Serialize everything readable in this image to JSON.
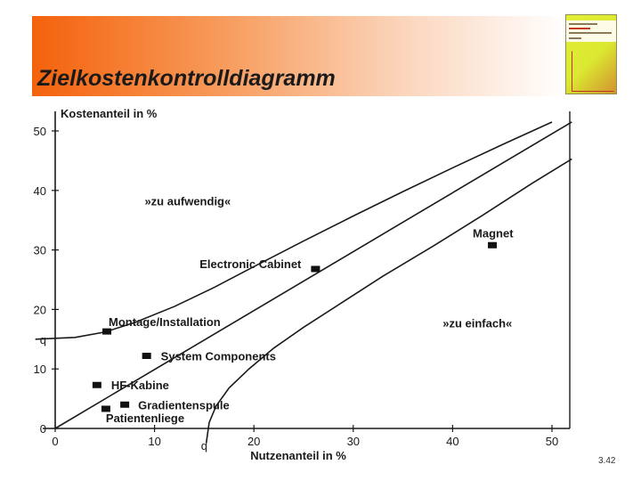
{
  "slide": {
    "title": "Zielkostenkontrolldiagramm",
    "page_number": "3.42"
  },
  "colors": {
    "header_orange": "#f4620c",
    "ink": "#1a1a1a",
    "book_yellow": "#e3ef37"
  },
  "icons": [
    "book-cover-thumbnail"
  ],
  "chart_data": {
    "type": "scatter",
    "title": "",
    "xlabel": "Nutzenanteil in %",
    "ylabel": "Kostenanteil in %",
    "xlim": [
      0,
      50
    ],
    "ylim": [
      0,
      50
    ],
    "x_ticks": [
      0,
      10,
      20,
      30,
      40,
      50
    ],
    "y_ticks": [
      0,
      10,
      20,
      30,
      40,
      50
    ],
    "q_label": "q",
    "q_value": 15,
    "grid": false,
    "region_labels": [
      {
        "text": "»zu aufwendig«",
        "x": 9,
        "y": 37.5
      },
      {
        "text": "»zu einfach«",
        "x": 39,
        "y": 17
      }
    ],
    "points": [
      {
        "label": "Magnet",
        "x": 44,
        "y": 30.8
      },
      {
        "label": "Electronic Cabinet",
        "x": 26.2,
        "y": 26.8
      },
      {
        "label": "Montage/Installation",
        "x": 5.2,
        "y": 16.3
      },
      {
        "label": "System Components",
        "x": 9.2,
        "y": 12.2
      },
      {
        "label": "HF-Kabine",
        "x": 4.2,
        "y": 7.3
      },
      {
        "label": "Gradientenspule",
        "x": 7,
        "y": 4
      },
      {
        "label": "Patientenliege",
        "x": 5.1,
        "y": 3.3
      }
    ],
    "lines": [
      {
        "name": "diagonal",
        "points": [
          [
            0,
            0
          ],
          [
            52,
            51.5
          ]
        ]
      },
      {
        "name": "upper-boundary",
        "points": [
          [
            -2,
            15
          ],
          [
            2,
            15.3
          ],
          [
            5,
            16.2
          ],
          [
            8,
            17.8
          ],
          [
            12,
            20.5
          ],
          [
            16,
            23.7
          ],
          [
            20,
            27.2
          ],
          [
            25,
            31.5
          ],
          [
            30,
            35.7
          ],
          [
            35,
            39.8
          ],
          [
            40,
            43.8
          ],
          [
            45,
            47.7
          ],
          [
            50,
            51.5
          ]
        ]
      },
      {
        "name": "lower-boundary",
        "points": [
          [
            15.2,
            -2.5
          ],
          [
            15.5,
            1
          ],
          [
            16.2,
            3.8
          ],
          [
            17.5,
            6.8
          ],
          [
            19.5,
            10
          ],
          [
            22,
            13.5
          ],
          [
            25,
            17
          ],
          [
            29,
            21.3
          ],
          [
            33,
            25.6
          ],
          [
            38,
            30.6
          ],
          [
            43,
            35.8
          ],
          [
            48,
            41.2
          ],
          [
            52,
            45.3
          ]
        ]
      }
    ]
  }
}
